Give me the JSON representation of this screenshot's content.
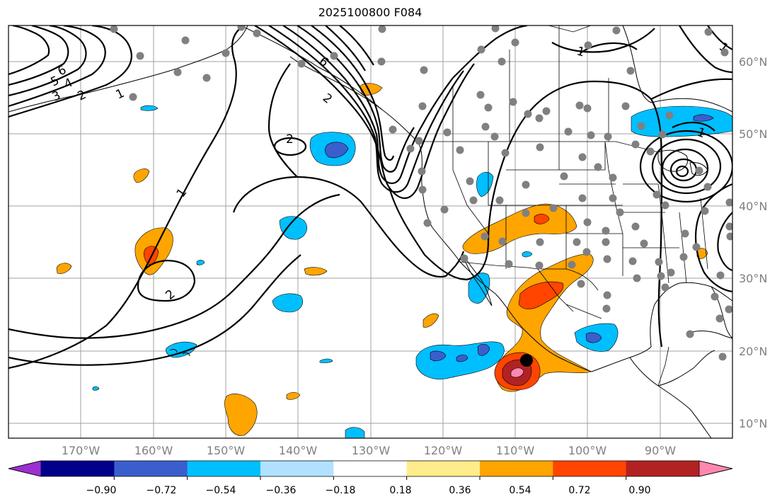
{
  "title": "2025100800 F084",
  "map": {
    "lat_labels": [
      "60°N",
      "50°N",
      "40°N",
      "30°N",
      "20°N",
      "10°N"
    ],
    "lon_labels": [
      "170°W",
      "160°W",
      "150°W",
      "140°W",
      "130°W",
      "120°W",
      "110°W",
      "100°W",
      "90°W"
    ],
    "contour_labels": [
      "6",
      "5",
      "4",
      "3",
      "2",
      "1",
      "6",
      "2",
      "2",
      "1",
      "2",
      "1",
      "1",
      "1"
    ]
  },
  "colorbar": {
    "colors": [
      "#9b30d0",
      "#00008b",
      "#3a5fcd",
      "#00bfff",
      "#b0e2ff",
      "#ffffff",
      "#ffec8b",
      "#ffa500",
      "#ff4500",
      "#b22222",
      "#ff88b0"
    ],
    "tick_labels": [
      "−0.90",
      "−0.72",
      "−0.54",
      "−0.36",
      "−0.18",
      "0.18",
      "0.36",
      "0.54",
      "0.72",
      "0.90"
    ]
  },
  "legend_colors": {
    "station": "#808080",
    "marker": "#000000",
    "contour": "#000000",
    "grid": "#a0a0a0"
  }
}
